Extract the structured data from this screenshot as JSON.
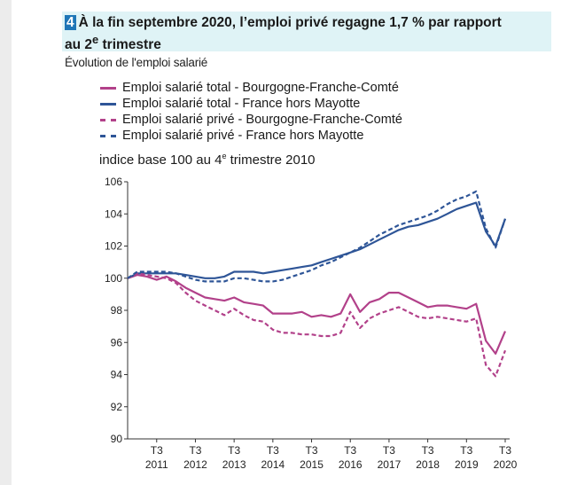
{
  "header": {
    "number": "4",
    "title_line1": "À la fin septembre 2020, l’emploi privé regagne 1,7 % par rapport",
    "title_line2_pre": "au 2",
    "title_line2_sup": "e",
    "title_line2_post": " trimestre"
  },
  "subtitle": "Évolution de l'emploi salarié",
  "chart_title": {
    "pre": "indice base 100 au 4",
    "sup": "e",
    "post": " trimestre 2010"
  },
  "colors": {
    "bfc": "#b2418a",
    "france": "#2e5597",
    "header_bg": "#dff3f6",
    "badge": "#1f76b7"
  },
  "chart_data": {
    "type": "line",
    "title": "indice base 100 au 4e trimestre 2010",
    "ylim": [
      90,
      106
    ],
    "yticks": [
      "106",
      "104",
      "102",
      "100",
      "98",
      "96",
      "94",
      "92",
      "90"
    ],
    "xticks": [
      {
        "q": "T3",
        "year": "2011"
      },
      {
        "q": "T3",
        "year": "2012"
      },
      {
        "q": "T3",
        "year": "2013"
      },
      {
        "q": "T3",
        "year": "2014"
      },
      {
        "q": "T3",
        "year": "2015"
      },
      {
        "q": "T3",
        "year": "2016"
      },
      {
        "q": "T3",
        "year": "2017"
      },
      {
        "q": "T3",
        "year": "2018"
      },
      {
        "q": "T3",
        "year": "2019"
      },
      {
        "q": "T3",
        "year": "2020"
      }
    ],
    "x_start": "2010 T4",
    "grid": false,
    "series": [
      {
        "name": "Emploi salarié total - Bourgogne-Franche-Comté",
        "style": "solid",
        "color": "#b2418a",
        "values": [
          100.0,
          100.2,
          100.1,
          99.9,
          100.1,
          99.8,
          99.4,
          99.1,
          98.8,
          98.7,
          98.6,
          98.8,
          98.5,
          98.4,
          98.3,
          97.8,
          97.8,
          97.8,
          97.9,
          97.6,
          97.7,
          97.6,
          97.8,
          99.0,
          97.9,
          98.5,
          98.7,
          99.1,
          99.1,
          98.8,
          98.5,
          98.2,
          98.3,
          98.3,
          98.2,
          98.1,
          98.4,
          96.1,
          95.3,
          96.7
        ]
      },
      {
        "name": "Emploi salarié total - France hors Mayotte",
        "style": "solid",
        "color": "#2e5597",
        "values": [
          100.0,
          100.3,
          100.3,
          100.3,
          100.3,
          100.3,
          100.2,
          100.1,
          100.0,
          100.0,
          100.1,
          100.4,
          100.4,
          100.4,
          100.3,
          100.4,
          100.5,
          100.6,
          100.7,
          100.8,
          101.0,
          101.2,
          101.4,
          101.6,
          101.8,
          102.1,
          102.4,
          102.7,
          103.0,
          103.2,
          103.3,
          103.5,
          103.7,
          104.0,
          104.3,
          104.5,
          104.7,
          102.9,
          102.0,
          103.7
        ]
      },
      {
        "name": "Emploi salarié privé - Bourgogne-Franche-Comté",
        "style": "dashed",
        "color": "#b2418a",
        "values": [
          100.0,
          100.3,
          100.2,
          100.1,
          100.0,
          99.7,
          99.1,
          98.6,
          98.3,
          98.0,
          97.7,
          98.1,
          97.7,
          97.4,
          97.3,
          96.8,
          96.6,
          96.6,
          96.5,
          96.5,
          96.4,
          96.4,
          96.6,
          97.9,
          96.9,
          97.5,
          97.8,
          98.0,
          98.2,
          97.9,
          97.6,
          97.5,
          97.6,
          97.5,
          97.4,
          97.3,
          97.5,
          94.6,
          93.9,
          95.5
        ]
      },
      {
        "name": "Emploi salarié privé - France hors Mayotte",
        "style": "dashed",
        "color": "#2e5597",
        "values": [
          100.0,
          100.4,
          100.4,
          100.4,
          100.4,
          100.3,
          100.1,
          99.9,
          99.8,
          99.8,
          99.8,
          100.0,
          100.0,
          99.9,
          99.8,
          99.8,
          99.9,
          100.1,
          100.3,
          100.5,
          100.8,
          101.0,
          101.3,
          101.6,
          101.9,
          102.3,
          102.7,
          103.0,
          103.3,
          103.5,
          103.7,
          103.9,
          104.2,
          104.6,
          104.9,
          105.1,
          105.4,
          103.1,
          101.9,
          103.7
        ]
      }
    ]
  }
}
